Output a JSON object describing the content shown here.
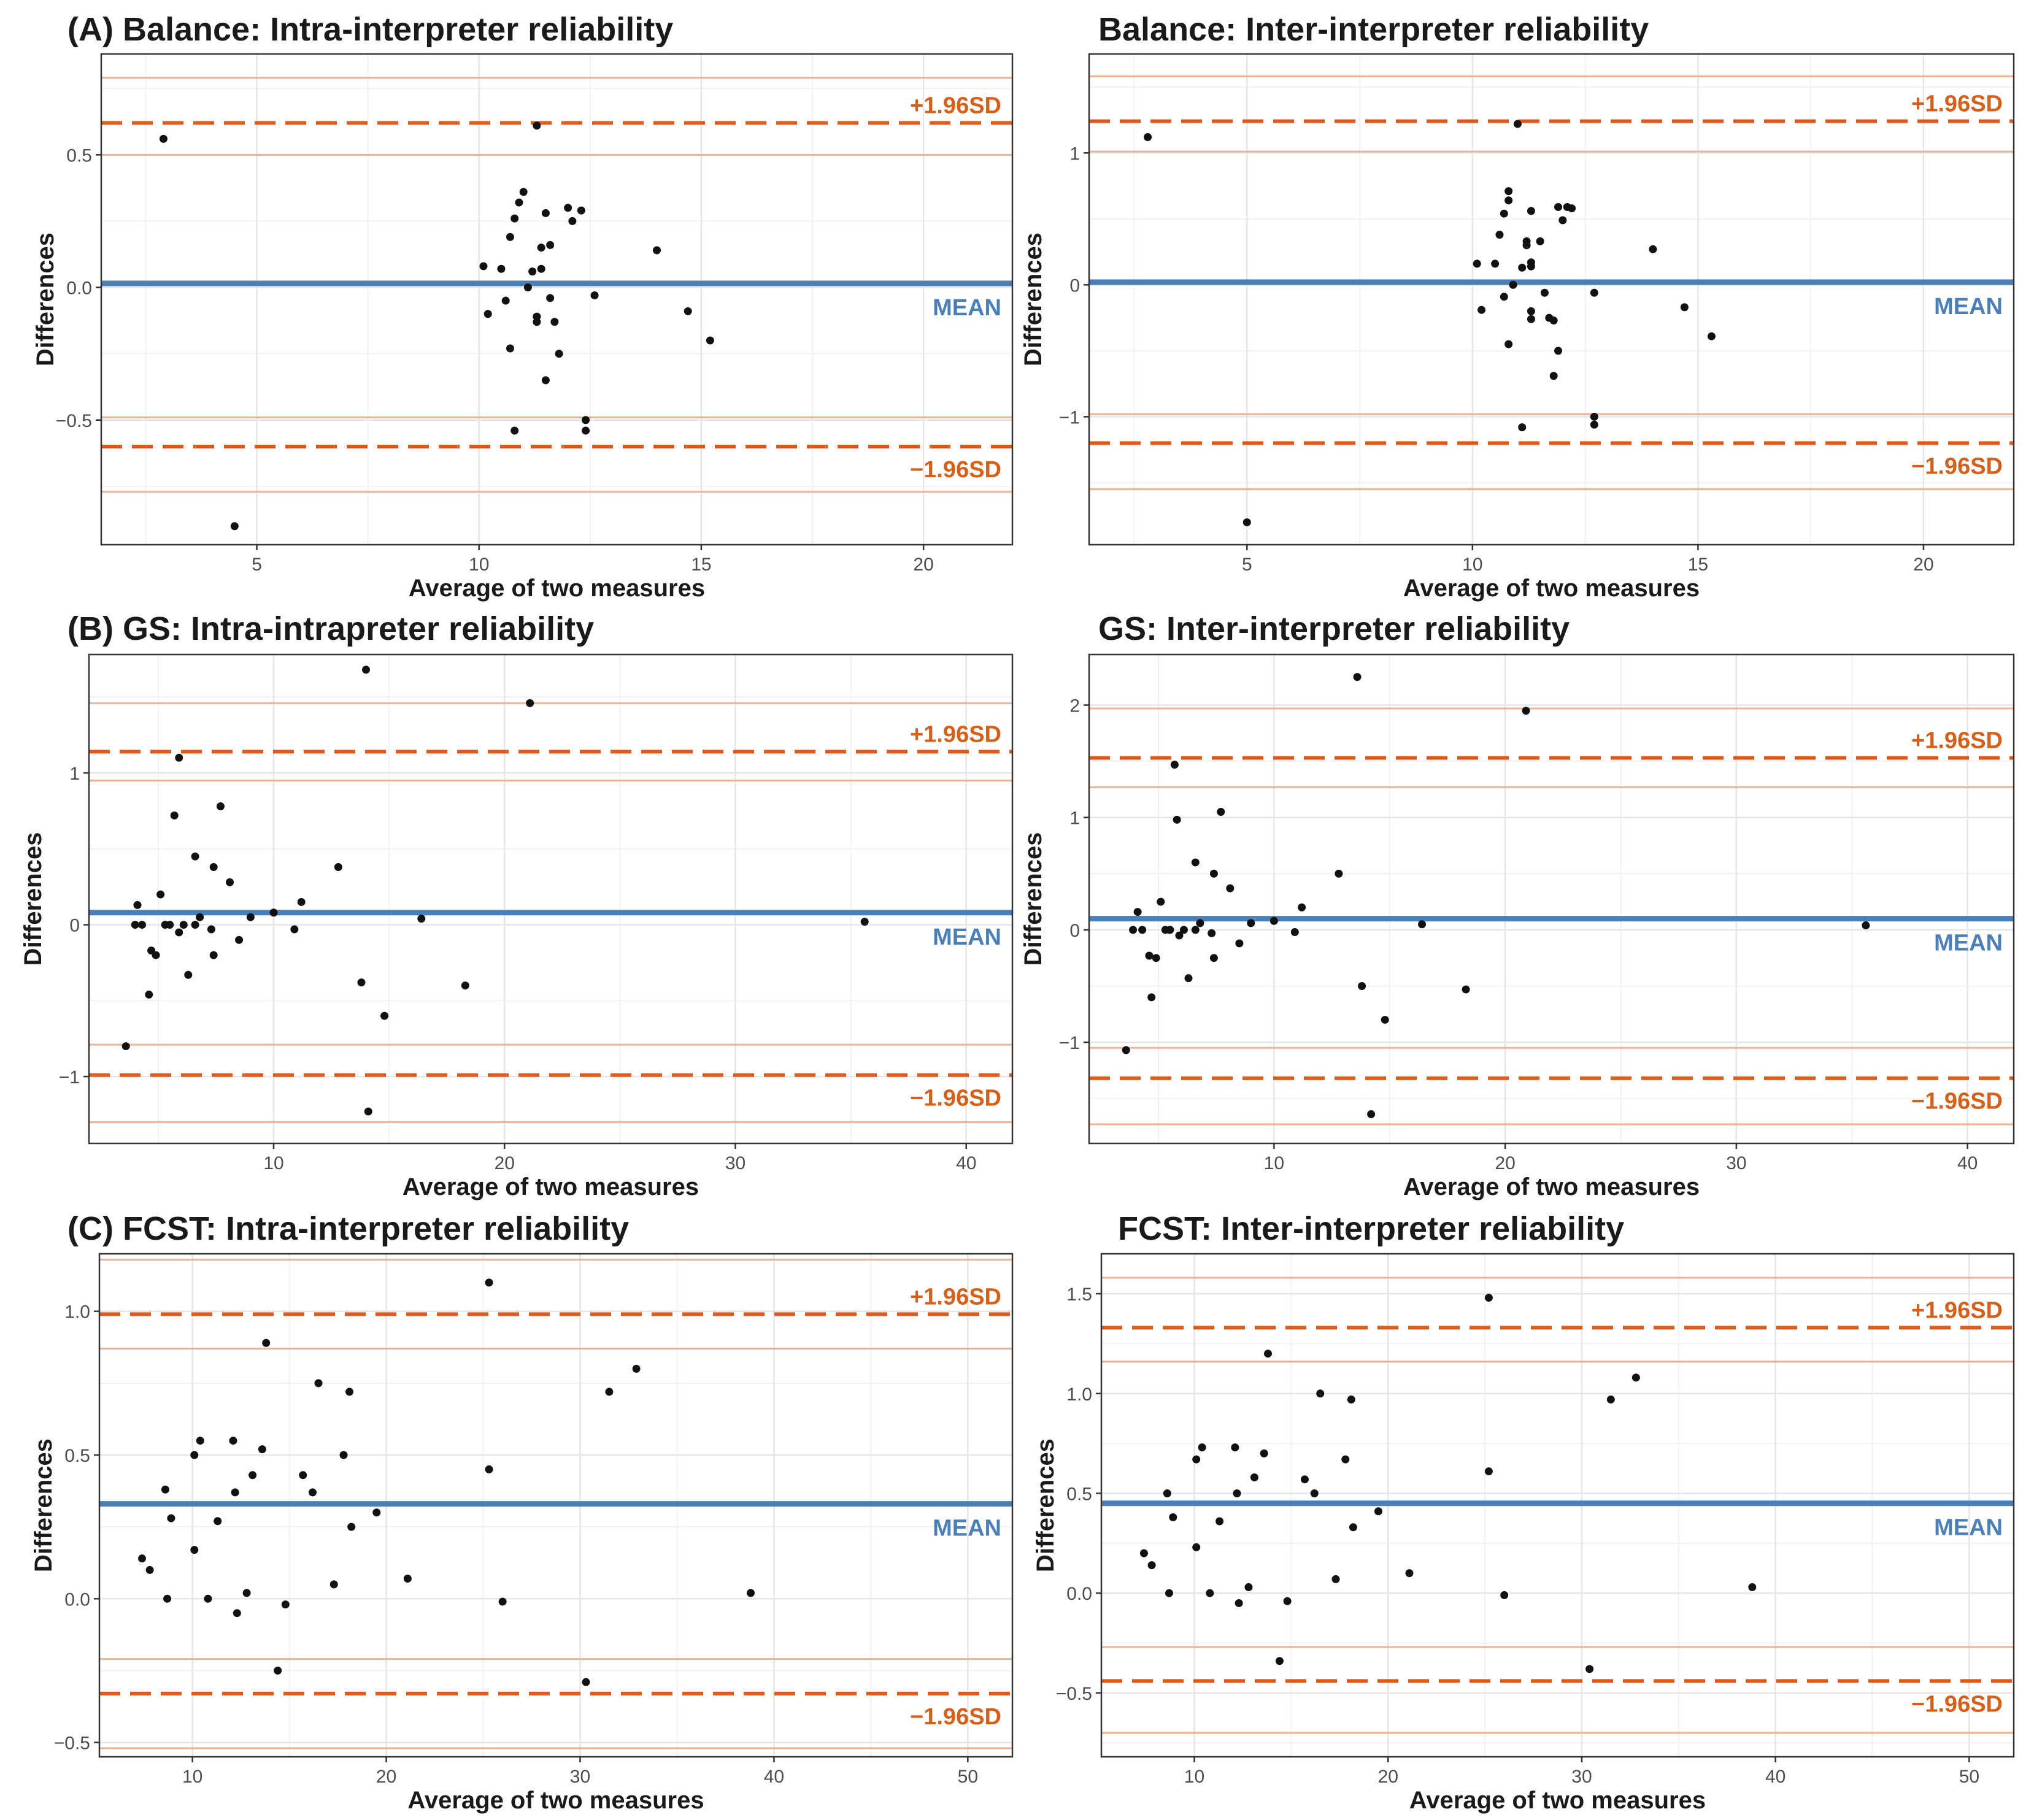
{
  "chart_data": [
    {
      "type": "scatter",
      "title": "(A) Balance: Intra-interpreter reliability",
      "xlabel": "Average of two measures",
      "ylabel": "Differences",
      "xlim": [
        1.5,
        22
      ],
      "ylim": [
        -0.97,
        0.88
      ],
      "xticks": [
        5,
        10,
        15,
        20
      ],
      "yticks": [
        -0.5,
        0.0,
        0.5
      ],
      "ytick_labels": [
        "−0.5",
        "0.0",
        "0.5"
      ],
      "mean": 0.015,
      "upper_sd": 0.62,
      "lower_sd": -0.6,
      "upper_ci": [
        0.5,
        0.79
      ],
      "lower_ci": [
        -0.49,
        -0.77
      ],
      "mean_label": "MEAN",
      "upper_label": "+1.96SD",
      "lower_label": "−1.96SD",
      "points": [
        [
          2.9,
          0.56
        ],
        [
          4.5,
          -0.9
        ],
        [
          10.1,
          0.08
        ],
        [
          10.2,
          -0.1
        ],
        [
          10.5,
          0.07
        ],
        [
          10.6,
          -0.05
        ],
        [
          10.7,
          -0.23
        ],
        [
          10.7,
          0.19
        ],
        [
          10.8,
          0.26
        ],
        [
          10.9,
          0.32
        ],
        [
          11.0,
          0.36
        ],
        [
          10.8,
          -0.54
        ],
        [
          11.1,
          0.0
        ],
        [
          11.2,
          0.06
        ],
        [
          11.3,
          -0.11
        ],
        [
          11.3,
          -0.13
        ],
        [
          11.4,
          0.07
        ],
        [
          11.4,
          0.15
        ],
        [
          11.3,
          0.61
        ],
        [
          11.5,
          0.28
        ],
        [
          11.6,
          -0.04
        ],
        [
          11.6,
          0.16
        ],
        [
          11.5,
          -0.35
        ],
        [
          11.7,
          -0.13
        ],
        [
          11.8,
          -0.25
        ],
        [
          12.0,
          0.3
        ],
        [
          12.1,
          0.25
        ],
        [
          12.3,
          0.29
        ],
        [
          12.4,
          -0.5
        ],
        [
          12.4,
          -0.54
        ],
        [
          12.6,
          -0.03
        ],
        [
          14.0,
          0.14
        ],
        [
          14.7,
          -0.09
        ],
        [
          15.2,
          -0.2
        ]
      ]
    },
    {
      "type": "scatter",
      "title": "Balance: Inter-interpreter reliability",
      "xlabel": "Average of two measures",
      "ylabel": "Differences",
      "xlim": [
        1.5,
        22
      ],
      "ylim": [
        -1.97,
        1.75
      ],
      "xticks": [
        5,
        10,
        15,
        20
      ],
      "yticks": [
        -1,
        0,
        1
      ],
      "ytick_labels": [
        "−1",
        "0",
        "1"
      ],
      "mean": 0.02,
      "upper_sd": 1.24,
      "lower_sd": -1.2,
      "upper_ci": [
        1.01,
        1.58
      ],
      "lower_ci": [
        -0.98,
        -1.55
      ],
      "mean_label": "MEAN",
      "upper_label": "+1.96SD",
      "lower_label": "−1.96SD",
      "points": [
        [
          2.8,
          1.12
        ],
        [
          5.0,
          -1.8
        ],
        [
          10.1,
          0.16
        ],
        [
          10.2,
          -0.19
        ],
        [
          10.5,
          0.16
        ],
        [
          10.6,
          0.38
        ],
        [
          10.7,
          -0.09
        ],
        [
          10.7,
          0.54
        ],
        [
          10.8,
          0.64
        ],
        [
          10.8,
          0.71
        ],
        [
          10.8,
          -0.45
        ],
        [
          10.9,
          -0.0
        ],
        [
          11.0,
          1.22
        ],
        [
          11.1,
          0.13
        ],
        [
          11.1,
          -1.08
        ],
        [
          11.2,
          0.33
        ],
        [
          11.2,
          0.3
        ],
        [
          11.3,
          -0.26
        ],
        [
          11.3,
          0.14
        ],
        [
          11.3,
          0.17
        ],
        [
          11.3,
          -0.2
        ],
        [
          11.3,
          0.56
        ],
        [
          11.5,
          0.33
        ],
        [
          11.6,
          -0.06
        ],
        [
          11.7,
          -0.25
        ],
        [
          11.8,
          -0.27
        ],
        [
          11.8,
          -0.69
        ],
        [
          11.9,
          0.59
        ],
        [
          11.9,
          -0.5
        ],
        [
          12.0,
          0.49
        ],
        [
          12.1,
          0.59
        ],
        [
          12.2,
          0.58
        ],
        [
          12.7,
          -0.06
        ],
        [
          12.7,
          -1.0
        ],
        [
          12.7,
          -1.06
        ],
        [
          14.0,
          0.27
        ],
        [
          14.7,
          -0.17
        ],
        [
          15.3,
          -0.39
        ]
      ]
    },
    {
      "type": "scatter",
      "title": "(B) GS: Intra-intrapreter reliability",
      "xlabel": "Average of two measures",
      "ylabel": "Differences",
      "xlim": [
        2,
        42
      ],
      "ylim": [
        -1.44,
        1.78
      ],
      "xticks": [
        10,
        20,
        30,
        40
      ],
      "yticks": [
        -1,
        0,
        1
      ],
      "ytick_labels": [
        "−1",
        "0",
        "1"
      ],
      "mean": 0.08,
      "upper_sd": 1.14,
      "lower_sd": -0.99,
      "upper_ci": [
        0.95,
        1.46
      ],
      "lower_ci": [
        -0.79,
        -1.3
      ],
      "mean_label": "MEAN",
      "upper_label": "+1.96SD",
      "lower_label": "−1.96SD",
      "points": [
        [
          3.6,
          -0.8
        ],
        [
          4.0,
          0.0
        ],
        [
          4.1,
          0.13
        ],
        [
          4.3,
          0.0
        ],
        [
          4.6,
          -0.46
        ],
        [
          4.7,
          -0.17
        ],
        [
          4.9,
          -0.2
        ],
        [
          5.1,
          0.2
        ],
        [
          5.3,
          0.0
        ],
        [
          5.5,
          0.0
        ],
        [
          5.7,
          0.72
        ],
        [
          5.9,
          1.1
        ],
        [
          5.9,
          -0.05
        ],
        [
          6.1,
          0.0
        ],
        [
          6.3,
          -0.33
        ],
        [
          6.6,
          0.0
        ],
        [
          6.6,
          0.45
        ],
        [
          6.8,
          0.05
        ],
        [
          7.3,
          -0.03
        ],
        [
          7.4,
          0.38
        ],
        [
          7.4,
          -0.2
        ],
        [
          7.7,
          0.78
        ],
        [
          8.1,
          0.28
        ],
        [
          8.5,
          -0.1
        ],
        [
          9.0,
          0.05
        ],
        [
          10.0,
          0.08
        ],
        [
          10.9,
          -0.03
        ],
        [
          11.2,
          0.15
        ],
        [
          12.8,
          0.38
        ],
        [
          13.8,
          -0.38
        ],
        [
          14.0,
          1.68
        ],
        [
          14.1,
          -1.23
        ],
        [
          14.8,
          -0.6
        ],
        [
          16.4,
          0.04
        ],
        [
          18.3,
          -0.4
        ],
        [
          21.1,
          1.46
        ],
        [
          35.6,
          0.02
        ]
      ]
    },
    {
      "type": "scatter",
      "title": "GS: Inter-interpreter reliability",
      "xlabel": "Average of two measures",
      "ylabel": "Differences",
      "xlim": [
        2,
        42
      ],
      "ylim": [
        -1.9,
        2.45
      ],
      "xticks": [
        10,
        20,
        30,
        40
      ],
      "yticks": [
        -1,
        0,
        1,
        2
      ],
      "ytick_labels": [
        "−1",
        "0",
        "1",
        "2"
      ],
      "mean": 0.1,
      "upper_sd": 1.53,
      "lower_sd": -1.32,
      "upper_ci": [
        1.27,
        1.97
      ],
      "lower_ci": [
        -1.05,
        -1.73
      ],
      "mean_label": "MEAN",
      "upper_label": "+1.96SD",
      "lower_label": "−1.96SD",
      "points": [
        [
          3.6,
          -1.07
        ],
        [
          3.9,
          0.0
        ],
        [
          4.1,
          0.16
        ],
        [
          4.3,
          0.0
        ],
        [
          4.6,
          -0.23
        ],
        [
          4.7,
          -0.6
        ],
        [
          4.9,
          -0.25
        ],
        [
          5.1,
          0.25
        ],
        [
          5.3,
          0.0
        ],
        [
          5.5,
          0.0
        ],
        [
          5.7,
          1.47
        ],
        [
          5.8,
          0.98
        ],
        [
          5.9,
          -0.05
        ],
        [
          6.1,
          0.0
        ],
        [
          6.3,
          -0.43
        ],
        [
          6.6,
          0.0
        ],
        [
          6.6,
          0.6
        ],
        [
          6.8,
          0.06
        ],
        [
          7.3,
          -0.03
        ],
        [
          7.4,
          0.5
        ],
        [
          7.4,
          -0.25
        ],
        [
          7.7,
          1.05
        ],
        [
          8.1,
          0.37
        ],
        [
          8.5,
          -0.12
        ],
        [
          9.0,
          0.06
        ],
        [
          10.0,
          0.08
        ],
        [
          10.9,
          -0.02
        ],
        [
          11.2,
          0.2
        ],
        [
          12.8,
          0.5
        ],
        [
          13.8,
          -0.5
        ],
        [
          13.6,
          2.25
        ],
        [
          14.2,
          -1.64
        ],
        [
          14.8,
          -0.8
        ],
        [
          16.4,
          0.05
        ],
        [
          18.3,
          -0.53
        ],
        [
          20.9,
          1.95
        ],
        [
          35.6,
          0.04
        ]
      ]
    },
    {
      "type": "scatter",
      "title": "(C) FCST: Intra-interpreter reliability",
      "xlabel": "Average of two measures",
      "ylabel": "Differences",
      "xlim": [
        5.2,
        52.3
      ],
      "ylim": [
        -0.55,
        1.2
      ],
      "xticks": [
        10,
        20,
        30,
        40,
        50
      ],
      "yticks": [
        -0.5,
        0.0,
        0.5,
        1.0
      ],
      "ytick_labels": [
        "−0.5",
        "0.0",
        "0.5",
        "1.0"
      ],
      "mean": 0.33,
      "upper_sd": 0.99,
      "lower_sd": -0.33,
      "upper_ci": [
        0.87,
        1.18
      ],
      "lower_ci": [
        -0.21,
        -0.52
      ],
      "mean_label": "MEAN",
      "upper_label": "+1.96SD",
      "lower_label": "−1.96SD",
      "points": [
        [
          7.4,
          0.14
        ],
        [
          7.8,
          0.1
        ],
        [
          8.6,
          0.38
        ],
        [
          8.7,
          0.0
        ],
        [
          8.9,
          0.28
        ],
        [
          10.1,
          0.5
        ],
        [
          10.1,
          0.17
        ],
        [
          10.4,
          0.55
        ],
        [
          10.8,
          0.0
        ],
        [
          11.3,
          0.27
        ],
        [
          12.1,
          0.55
        ],
        [
          12.2,
          0.37
        ],
        [
          12.3,
          -0.05
        ],
        [
          12.8,
          0.02
        ],
        [
          13.1,
          0.43
        ],
        [
          13.6,
          0.52
        ],
        [
          13.8,
          0.89
        ],
        [
          14.4,
          -0.25
        ],
        [
          14.8,
          -0.02
        ],
        [
          15.7,
          0.43
        ],
        [
          16.2,
          0.37
        ],
        [
          16.5,
          0.75
        ],
        [
          17.3,
          0.05
        ],
        [
          17.8,
          0.5
        ],
        [
          18.1,
          0.72
        ],
        [
          18.2,
          0.25
        ],
        [
          19.5,
          0.3
        ],
        [
          21.1,
          0.07
        ],
        [
          25.3,
          1.1
        ],
        [
          25.3,
          0.45
        ],
        [
          26.0,
          -0.01
        ],
        [
          30.3,
          -0.29
        ],
        [
          31.5,
          0.72
        ],
        [
          32.9,
          0.8
        ],
        [
          38.8,
          0.02
        ]
      ]
    },
    {
      "type": "scatter",
      "title": "FCST: Inter-interpreter reliability",
      "xlabel": "Average of two measures",
      "ylabel": "Differences",
      "xlim": [
        5.2,
        52.3
      ],
      "ylim": [
        -0.82,
        1.7
      ],
      "xticks": [
        10,
        20,
        30,
        40,
        50
      ],
      "yticks": [
        -0.5,
        0.0,
        0.5,
        1.0,
        1.5
      ],
      "ytick_labels": [
        "−0.5",
        "0.0",
        "0.5",
        "1.0",
        "1.5"
      ],
      "mean": 0.45,
      "upper_sd": 1.33,
      "lower_sd": -0.44,
      "upper_ci": [
        1.16,
        1.58
      ],
      "lower_ci": [
        -0.27,
        -0.7
      ],
      "mean_label": "MEAN",
      "upper_label": "+1.96SD",
      "lower_label": "−1.96SD",
      "points": [
        [
          7.4,
          0.2
        ],
        [
          7.8,
          0.14
        ],
        [
          8.6,
          0.5
        ],
        [
          8.7,
          0.0
        ],
        [
          8.9,
          0.38
        ],
        [
          10.1,
          0.67
        ],
        [
          10.1,
          0.23
        ],
        [
          10.4,
          0.73
        ],
        [
          10.8,
          0.0
        ],
        [
          11.3,
          0.36
        ],
        [
          12.1,
          0.73
        ],
        [
          12.2,
          0.5
        ],
        [
          12.3,
          -0.05
        ],
        [
          12.8,
          0.03
        ],
        [
          13.1,
          0.58
        ],
        [
          13.6,
          0.7
        ],
        [
          13.8,
          1.2
        ],
        [
          14.4,
          -0.34
        ],
        [
          14.8,
          -0.04
        ],
        [
          15.7,
          0.57
        ],
        [
          16.2,
          0.5
        ],
        [
          16.5,
          1.0
        ],
        [
          17.3,
          0.07
        ],
        [
          17.8,
          0.67
        ],
        [
          18.1,
          0.97
        ],
        [
          18.2,
          0.33
        ],
        [
          19.5,
          0.41
        ],
        [
          21.1,
          0.1
        ],
        [
          25.2,
          1.48
        ],
        [
          25.2,
          0.61
        ],
        [
          26.0,
          -0.01
        ],
        [
          30.4,
          -0.38
        ],
        [
          31.5,
          0.97
        ],
        [
          32.8,
          1.08
        ],
        [
          38.8,
          0.03
        ]
      ]
    }
  ]
}
